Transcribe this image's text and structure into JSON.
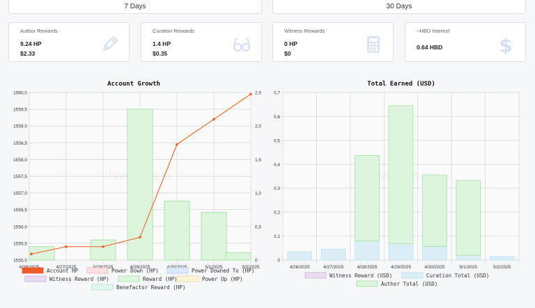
{
  "periods": [
    {
      "label": "7 Days"
    },
    {
      "label": "30 Days"
    }
  ],
  "cards": [
    {
      "label": "Author Rewards",
      "line1": "9.24 HP",
      "line2": "$2.33",
      "icon": "pencil-icon"
    },
    {
      "label": "Curation Rewards",
      "line1": "1.4 HP",
      "line2": "$0.35",
      "icon": "glasses-icon"
    },
    {
      "label": "Witness Rewards",
      "line1": "0 HP",
      "line2": "$0",
      "icon": "calculator-icon"
    },
    {
      "label": "~HBD Interest",
      "line1": "0.64 HBD",
      "icon": "dollar-icon"
    }
  ],
  "watermark": "hivestats.io",
  "colors": {
    "icon": "#dce3f5",
    "grid": "#d4d4d4",
    "account_hp": "#ee7a3f",
    "reward_hp_fill": "#dcf5dc",
    "reward_hp_stroke": "#9edf9e",
    "curation_fill": "#dbeef8",
    "author_fill": "#dcf5dc"
  },
  "chart_data": [
    {
      "type": "bar",
      "title": "Account Growth",
      "categories": [
        "4/26/2025",
        "4/27/2025",
        "4/28/2025",
        "4/29/2025",
        "4/30/2025",
        "5/1/2025",
        "5/2/2025"
      ],
      "y_left": {
        "ylim": [
          1555.0,
          1560.0
        ],
        "ticks": [
          "1560,0",
          "1559,5",
          "1559,0",
          "1558,5",
          "1558,0",
          "1557,5",
          "1557,0",
          "1556,5",
          "1556,0",
          "1555,5",
          "1555,0"
        ]
      },
      "y_right": {
        "ylim": [
          0,
          2.5
        ],
        "ticks": [
          "2,5",
          "2,0",
          "1,5",
          "1,0",
          "0,5",
          "0"
        ]
      },
      "series": [
        {
          "name": "Account HP",
          "kind": "line",
          "axis": "left",
          "values": [
            1555.18,
            1555.4,
            1555.4,
            1555.68,
            1558.45,
            1559.2,
            1559.95
          ]
        },
        {
          "name": "Power Down (HP)",
          "kind": "bar",
          "axis": "right",
          "values": [
            0,
            0,
            0,
            0,
            0,
            0,
            0
          ]
        },
        {
          "name": "Power Downed To (HP)",
          "kind": "bar",
          "axis": "right",
          "values": [
            0,
            0,
            0,
            0,
            0,
            0,
            0
          ]
        },
        {
          "name": "Witness Reward (HP)",
          "kind": "bar",
          "axis": "right",
          "values": [
            0,
            0,
            0,
            0,
            0,
            0,
            0
          ]
        },
        {
          "name": "Reward (HP)",
          "kind": "bar",
          "axis": "right",
          "values": [
            0.2,
            0,
            0.3,
            2.25,
            0.88,
            0.71,
            0.11
          ]
        },
        {
          "name": "Power Up (HP)",
          "kind": "bar",
          "axis": "right",
          "values": [
            0,
            0,
            0,
            0,
            0,
            0,
            0
          ]
        },
        {
          "name": "Benefactor Reward (HP)",
          "kind": "bar",
          "axis": "right",
          "values": [
            0,
            0,
            0,
            0,
            0,
            0,
            0
          ]
        }
      ],
      "legend": "bottom"
    },
    {
      "type": "bar",
      "title": "Total Earned (USD)",
      "categories": [
        "4/26/2025",
        "4/27/2025",
        "4/28/2025",
        "4/29/2025",
        "4/30/2025",
        "5/1/2025",
        "5/2/2025"
      ],
      "ylim": [
        0,
        0.7
      ],
      "ticks": [
        "0,7",
        "0,6",
        "0,5",
        "0,4",
        "0,3",
        "0,2",
        "0,1",
        "0"
      ],
      "stacked": true,
      "series": [
        {
          "name": "Witness Reward (USD)",
          "values": [
            0,
            0,
            0,
            0,
            0,
            0,
            0
          ]
        },
        {
          "name": "Curation Total (USD)",
          "values": [
            0.035,
            0.045,
            0.08,
            0.068,
            0.057,
            0.02,
            0.015
          ]
        },
        {
          "name": "Author Total (USD)",
          "values": [
            0,
            0,
            0.357,
            0.577,
            0.298,
            0.312,
            0
          ]
        }
      ],
      "legend": "bottom"
    }
  ]
}
